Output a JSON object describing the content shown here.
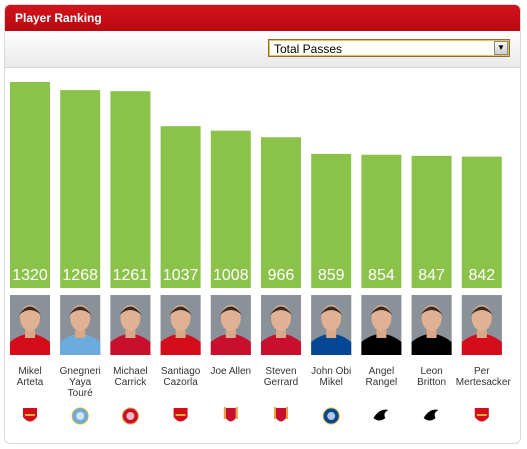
{
  "header": {
    "title": "Player Ranking"
  },
  "stat_select": {
    "selected": "Total Passes"
  },
  "club_colors": {
    "arsenal": "#d50c1a",
    "mancity": "#6cabdd",
    "manutd": "#c8102e",
    "liverpool": "#c8102e",
    "chelsea": "#034694",
    "swansea": "#000000"
  },
  "chart_data": {
    "type": "bar",
    "categories": [
      "Mikel Arteta",
      "Gnegneri Yaya Touré",
      "Michael Carrick",
      "Santiago Cazorla",
      "Joe Allen",
      "Steven Gerrard",
      "John Obi Mikel",
      "Angel Rangel",
      "Leon Britton",
      "Per Mertesacker"
    ],
    "values": [
      1320,
      1268,
      1261,
      1037,
      1008,
      966,
      859,
      854,
      847,
      842
    ],
    "bar_color": "#8bc34a",
    "ylim": [
      0,
      1320
    ],
    "grid": false,
    "players": [
      {
        "name_lines": [
          "Mikel",
          "Arteta"
        ],
        "club": "arsenal",
        "club_icon": "arsenal-crest-icon",
        "value_label": "1320"
      },
      {
        "name_lines": [
          "Gnegneri",
          "Yaya",
          "Touré"
        ],
        "club": "mancity",
        "club_icon": "mancity-crest-icon",
        "value_label": "1268"
      },
      {
        "name_lines": [
          "Michael",
          "Carrick"
        ],
        "club": "manutd",
        "club_icon": "manutd-crest-icon",
        "value_label": "1261"
      },
      {
        "name_lines": [
          "Santiago",
          "Cazorla"
        ],
        "club": "arsenal",
        "club_icon": "arsenal-crest-icon",
        "value_label": "1037"
      },
      {
        "name_lines": [
          "Joe Allen"
        ],
        "club": "liverpool",
        "club_icon": "liverpool-crest-icon",
        "value_label": "1008"
      },
      {
        "name_lines": [
          "Steven",
          "Gerrard"
        ],
        "club": "liverpool",
        "club_icon": "liverpool-crest-icon",
        "value_label": "966"
      },
      {
        "name_lines": [
          "John Obi",
          "Mikel"
        ],
        "club": "chelsea",
        "club_icon": "chelsea-crest-icon",
        "value_label": "859"
      },
      {
        "name_lines": [
          "Angel",
          "Rangel"
        ],
        "club": "swansea",
        "club_icon": "swansea-crest-icon",
        "value_label": "854"
      },
      {
        "name_lines": [
          "Leon",
          "Britton"
        ],
        "club": "swansea",
        "club_icon": "swansea-crest-icon",
        "value_label": "847"
      },
      {
        "name_lines": [
          "Per",
          "Mertesacker"
        ],
        "club": "arsenal",
        "club_icon": "arsenal-crest-icon",
        "value_label": "842"
      }
    ]
  }
}
